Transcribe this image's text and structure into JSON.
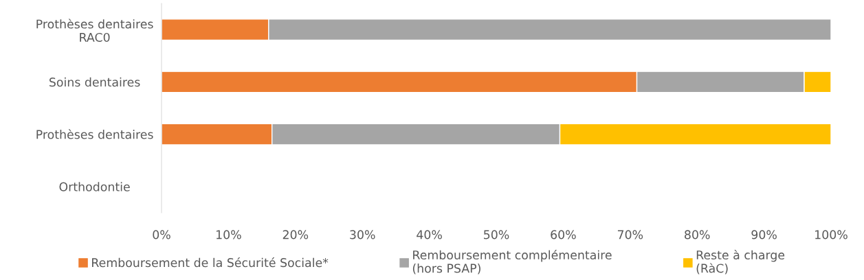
{
  "chart_data": {
    "type": "bar",
    "orientation": "horizontal",
    "stacked": true,
    "categories": [
      "Prothèses dentaires\nRAC0",
      "Soins dentaires",
      "Prothèses dentaires",
      "Orthodontie"
    ],
    "series": [
      {
        "name": "Remboursement de la Sécurité Sociale*",
        "color": "#ed7d31",
        "values": [
          16,
          71,
          16.5,
          null
        ]
      },
      {
        "name": "Remboursement complémentaire\n(hors PSAP)",
        "color": "#a5a5a5",
        "values": [
          84,
          25,
          43,
          null
        ]
      },
      {
        "name": "Reste à charge\n(RàC)",
        "color": "#ffc000",
        "values": [
          null,
          4,
          40.5,
          null
        ]
      }
    ],
    "xlim": [
      0,
      100
    ],
    "xticks": [
      {
        "value": 0,
        "label": "0%"
      },
      {
        "value": 10,
        "label": "10%"
      },
      {
        "value": 20,
        "label": "20%"
      },
      {
        "value": 30,
        "label": "30%"
      },
      {
        "value": 40,
        "label": "40%"
      },
      {
        "value": 50,
        "label": "50%"
      },
      {
        "value": 60,
        "label": "60%"
      },
      {
        "value": 70,
        "label": "70%"
      },
      {
        "value": 80,
        "label": "80%"
      },
      {
        "value": 90,
        "label": "90%"
      },
      {
        "value": 100,
        "label": "100%"
      }
    ],
    "grid": false,
    "legend": "bottom"
  }
}
